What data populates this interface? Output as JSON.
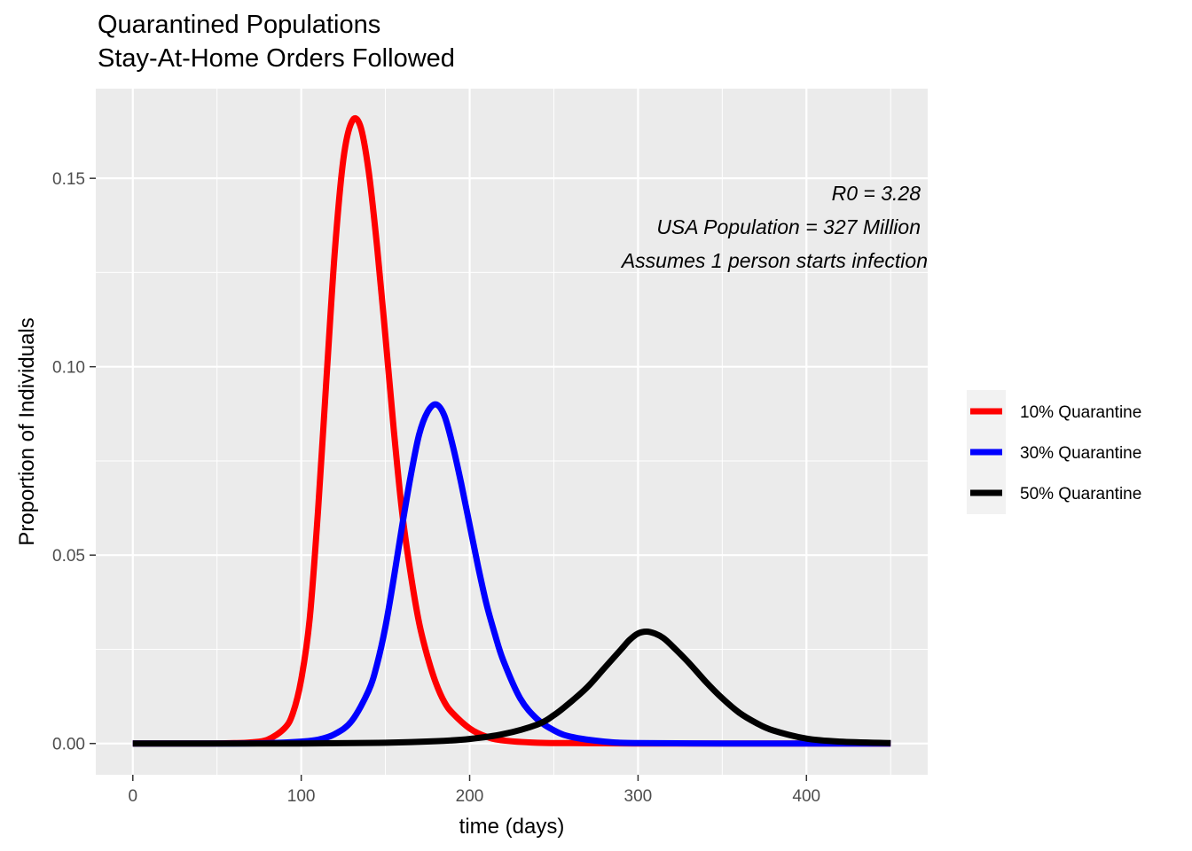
{
  "chart_data": {
    "type": "line",
    "title": "Quarantined Populations",
    "subtitle": "Stay-At-Home Orders Followed",
    "xlabel": "time (days)",
    "ylabel": "Proportion of Individuals",
    "xlim": [
      -22,
      472
    ],
    "ylim": [
      -0.0083,
      0.1738
    ],
    "x_ticks": [
      0,
      100,
      200,
      300,
      400
    ],
    "x_tick_labels": [
      "0",
      "100",
      "200",
      "300",
      "400"
    ],
    "y_ticks": [
      0,
      0.05,
      0.1,
      0.15
    ],
    "y_tick_labels": [
      "0.00",
      "0.05",
      "0.10",
      "0.15"
    ],
    "grid": true,
    "background": "#ebebeb",
    "legend_position": "right",
    "annotations": [
      "R0 = 3.28",
      "USA Population = 327 Million",
      "Assumes 1 person starts infection"
    ],
    "series": [
      {
        "name": "10% Quarantine",
        "color": "#ff0000",
        "x": [
          0,
          40,
          60,
          70,
          80,
          90,
          95,
          100,
          105,
          110,
          115,
          120,
          125,
          130,
          135,
          140,
          145,
          150,
          155,
          160,
          165,
          170,
          175,
          180,
          185,
          190,
          200,
          210,
          220,
          240,
          260,
          300,
          350,
          400,
          450
        ],
        "y": [
          0,
          0.0,
          0.0001,
          0.0003,
          0.001,
          0.004,
          0.008,
          0.017,
          0.033,
          0.062,
          0.097,
          0.131,
          0.155,
          0.165,
          0.164,
          0.152,
          0.132,
          0.108,
          0.083,
          0.061,
          0.045,
          0.032,
          0.023,
          0.016,
          0.011,
          0.008,
          0.004,
          0.0018,
          0.0008,
          0.0002,
          0.0001,
          0,
          0,
          0,
          0
        ]
      },
      {
        "name": "30% Quarantine",
        "color": "#0000ff",
        "x": [
          0,
          60,
          80,
          100,
          110,
          120,
          130,
          140,
          145,
          150,
          155,
          160,
          165,
          170,
          175,
          180,
          185,
          190,
          195,
          200,
          205,
          210,
          215,
          220,
          230,
          240,
          250,
          260,
          280,
          300,
          350,
          400,
          450
        ],
        "y": [
          0,
          0.0,
          0.0001,
          0.0005,
          0.001,
          0.0025,
          0.006,
          0.014,
          0.021,
          0.031,
          0.044,
          0.058,
          0.071,
          0.082,
          0.088,
          0.09,
          0.087,
          0.079,
          0.069,
          0.058,
          0.047,
          0.037,
          0.029,
          0.022,
          0.012,
          0.0065,
          0.0035,
          0.0018,
          0.0005,
          0.0001,
          0,
          0,
          0
        ]
      },
      {
        "name": "50% Quarantine",
        "color": "#000000",
        "x": [
          0,
          100,
          150,
          180,
          200,
          220,
          240,
          250,
          260,
          270,
          280,
          290,
          295,
          300,
          305,
          310,
          315,
          320,
          330,
          340,
          350,
          360,
          370,
          380,
          400,
          420,
          450
        ],
        "y": [
          0,
          0.0,
          0.0002,
          0.0006,
          0.0012,
          0.0025,
          0.005,
          0.0075,
          0.011,
          0.015,
          0.02,
          0.025,
          0.0275,
          0.0292,
          0.0297,
          0.0292,
          0.028,
          0.026,
          0.0215,
          0.0165,
          0.012,
          0.0082,
          0.0055,
          0.0035,
          0.0013,
          0.0005,
          0.0001
        ]
      }
    ]
  }
}
